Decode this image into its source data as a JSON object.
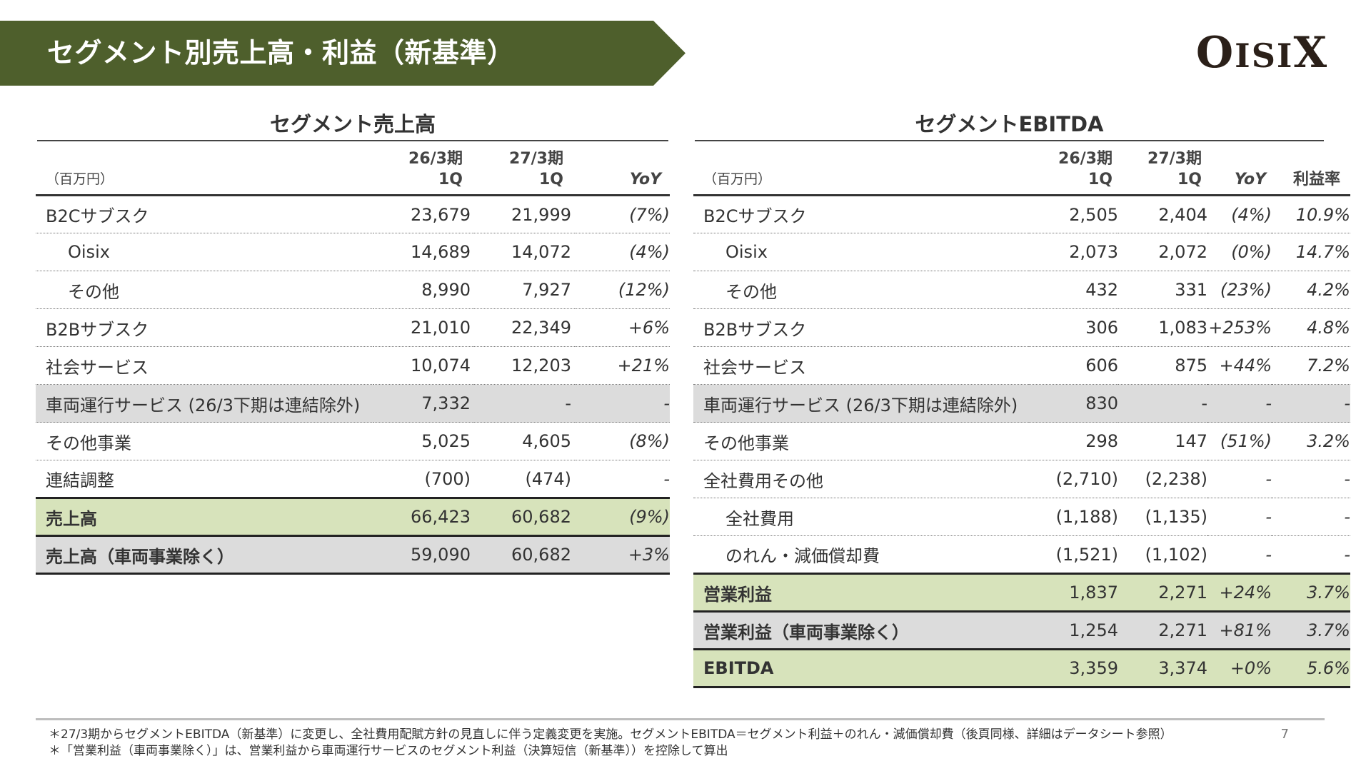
{
  "title": "セグメント別売上高・利益（新基準）",
  "logo": {
    "text_big1": "O",
    "text_small": "ISI",
    "text_big2": "X"
  },
  "sales": {
    "title": "セグメント売上高",
    "headers": {
      "unit": "（百万円）",
      "col1": "26/3期 1Q",
      "col2": "27/3期 1Q",
      "col3": "YoY"
    },
    "rows": [
      {
        "label": "B2Cサブスク",
        "v1": "23,679",
        "v2": "21,999",
        "yoy": "(7%)"
      },
      {
        "label": "Oisix",
        "v1": "14,689",
        "v2": "14,072",
        "yoy": "(4%)"
      },
      {
        "label": "その他",
        "v1": "8,990",
        "v2": "7,927",
        "yoy": "(12%)"
      },
      {
        "label": "B2Bサブスク",
        "v1": "21,010",
        "v2": "22,349",
        "yoy": "+6%"
      },
      {
        "label": "社会サービス",
        "v1": "10,074",
        "v2": "12,203",
        "yoy": "+21%"
      },
      {
        "label": "車両運行サービス (26/3下期は連結除外)",
        "v1": "7,332",
        "v2": "-",
        "yoy": "-"
      },
      {
        "label": "その他事業",
        "v1": "5,025",
        "v2": "4,605",
        "yoy": "(8%)"
      },
      {
        "label": "連結調整",
        "v1": "(700)",
        "v2": "(474)",
        "yoy": "-"
      },
      {
        "label": "売上高",
        "v1": "66,423",
        "v2": "60,682",
        "yoy": "(9%)"
      },
      {
        "label": "売上高（車両事業除く）",
        "v1": "59,090",
        "v2": "60,682",
        "yoy": "+3%"
      }
    ]
  },
  "ebitda": {
    "title": "セグメントEBITDA",
    "headers": {
      "unit": "（百万円）",
      "col1": "26/3期 1Q",
      "col2": "27/3期 1Q",
      "col3": "YoY",
      "col4": "利益率"
    },
    "rows": [
      {
        "label": "B2Cサブスク",
        "v1": "2,505",
        "v2": "2,404",
        "yoy": "(4%)",
        "margin": "10.9%"
      },
      {
        "label": "Oisix",
        "v1": "2,073",
        "v2": "2,072",
        "yoy": "(0%)",
        "margin": "14.7%"
      },
      {
        "label": "その他",
        "v1": "432",
        "v2": "331",
        "yoy": "(23%)",
        "margin": "4.2%"
      },
      {
        "label": "B2Bサブスク",
        "v1": "306",
        "v2": "1,083",
        "yoy": "+253%",
        "margin": "4.8%"
      },
      {
        "label": "社会サービス",
        "v1": "606",
        "v2": "875",
        "yoy": "+44%",
        "margin": "7.2%"
      },
      {
        "label": "車両運行サービス (26/3下期は連結除外)",
        "v1": "830",
        "v2": "-",
        "yoy": "-",
        "margin": "-"
      },
      {
        "label": "その他事業",
        "v1": "298",
        "v2": "147",
        "yoy": "(51%)",
        "margin": "3.2%"
      },
      {
        "label": "全社費用その他",
        "v1": "(2,710)",
        "v2": "(2,238)",
        "yoy": "-",
        "margin": "-"
      },
      {
        "label": "全社費用",
        "v1": "(1,188)",
        "v2": "(1,135)",
        "yoy": "-",
        "margin": "-"
      },
      {
        "label": "のれん・減価償却費",
        "v1": "(1,521)",
        "v2": "(1,102)",
        "yoy": "-",
        "margin": "-"
      },
      {
        "label": "営業利益",
        "v1": "1,837",
        "v2": "2,271",
        "yoy": "+24%",
        "margin": "3.7%"
      },
      {
        "label": "営業利益（車両事業除く）",
        "v1": "1,254",
        "v2": "2,271",
        "yoy": "+81%",
        "margin": "3.7%"
      },
      {
        "label": "EBITDA",
        "v1": "3,359",
        "v2": "3,374",
        "yoy": "+0%",
        "margin": "5.6%"
      }
    ]
  },
  "footnotes": [
    "＊27/3期からセグメントEBITDA（新基準）に変更し、全社費用配賦方針の見直しに伴う定義変更を実施。セグメントEBITDA＝セグメント利益＋のれん・減価償却費（後頁同様、詳細はデータシート参照）",
    "＊「営業利益（車両事業除く）」は、営業利益から車両運行サービスのセグメント利益（決算短信（新基準））を控除して算出"
  ],
  "page_number": "7"
}
